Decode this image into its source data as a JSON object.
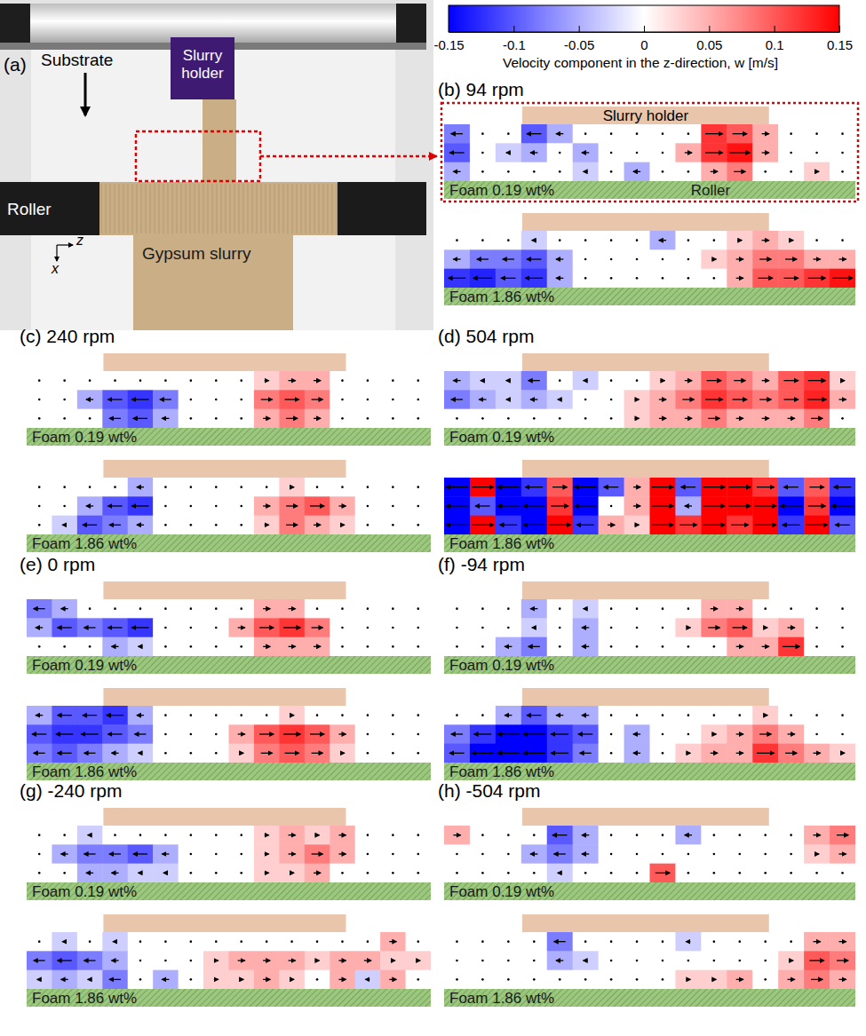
{
  "chart_data": {
    "type": "heatmap",
    "colorbar": {
      "title": "Velocity component in the z-direction, w [m/s]",
      "range": [
        -0.15,
        0.15
      ],
      "ticks": [
        -0.15,
        -0.1,
        -0.05,
        0,
        0.05,
        0.1,
        0.15
      ]
    },
    "panels": [
      {
        "label": "(b) 94 rpm",
        "holder_label": "Slurry holder",
        "roller_label": "Roller",
        "fields": [
          {
            "foam": "Foam 0.19 wt%",
            "w": [
              [
                -0.08,
                0,
                0,
                -0.1,
                -0.05,
                0,
                0,
                0,
                0,
                0,
                0.12,
                0.1,
                0.05,
                0,
                0,
                0
              ],
              [
                -0.1,
                0,
                -0.03,
                -0.05,
                0,
                -0.05,
                0,
                0,
                0,
                0.05,
                0.12,
                0.14,
                0.05,
                0,
                0,
                0
              ],
              [
                -0.05,
                0,
                0,
                0,
                0,
                -0.03,
                0,
                -0.05,
                0,
                0,
                0.05,
                0.08,
                0,
                0,
                0.03,
                0
              ]
            ]
          },
          {
            "foam": "Foam 1.86 wt%",
            "w": [
              [
                0,
                0,
                0,
                -0.03,
                0,
                0,
                0,
                0,
                -0.05,
                0,
                0,
                0.03,
                0.05,
                0.03,
                0,
                0
              ],
              [
                -0.05,
                -0.08,
                -0.08,
                -0.1,
                -0.05,
                0,
                0,
                0,
                0,
                0,
                0.03,
                0.05,
                0.08,
                0.08,
                0.05,
                0.05
              ],
              [
                -0.12,
                -0.13,
                -0.1,
                -0.12,
                -0.05,
                0,
                0,
                0,
                0,
                0,
                0,
                0.05,
                0.1,
                0.1,
                0.12,
                0.14
              ]
            ]
          }
        ]
      },
      {
        "label": "(c) 240 rpm",
        "fields": [
          {
            "foam": "Foam 0.19 wt%",
            "w": [
              [
                0,
                0,
                0,
                0,
                0,
                0,
                0,
                0,
                0,
                0.03,
                0.05,
                0.05,
                0,
                0,
                0,
                0
              ],
              [
                0,
                0,
                -0.05,
                -0.1,
                -0.12,
                -0.08,
                0,
                0,
                0,
                0.08,
                0.1,
                0.08,
                0,
                0,
                0,
                0
              ],
              [
                0,
                0,
                0,
                -0.08,
                -0.1,
                -0.05,
                0,
                0,
                0,
                0.05,
                0.08,
                0.05,
                0,
                0,
                0,
                0
              ]
            ]
          },
          {
            "foam": "Foam 1.86 wt%",
            "w": [
              [
                0,
                0,
                0,
                0,
                -0.05,
                0,
                0,
                0,
                0,
                0,
                0.03,
                0,
                0,
                0,
                0,
                0
              ],
              [
                0,
                0,
                -0.05,
                -0.1,
                -0.12,
                0,
                0,
                0,
                0,
                0.05,
                0.08,
                0.1,
                0.05,
                0,
                0,
                0
              ],
              [
                0,
                -0.03,
                -0.1,
                -0.08,
                -0.05,
                0,
                0,
                0,
                0,
                0.03,
                0.08,
                0.05,
                0.03,
                0,
                0,
                0
              ]
            ]
          }
        ]
      },
      {
        "label": "(d) 504 rpm",
        "fields": [
          {
            "foam": "Foam 0.19 wt%",
            "w": [
              [
                -0.05,
                -0.03,
                -0.03,
                -0.08,
                0,
                -0.03,
                0,
                0,
                0.03,
                0.05,
                0.1,
                0.08,
                0.05,
                0.1,
                0.12,
                0.03
              ],
              [
                -0.08,
                -0.05,
                -0.03,
                -0.05,
                -0.03,
                0,
                0,
                0.03,
                0.05,
                0.08,
                0.12,
                0.1,
                0.08,
                0.1,
                0.13,
                0.05
              ],
              [
                0,
                0,
                0,
                0,
                0,
                0,
                0,
                0.03,
                0.05,
                0.05,
                0.08,
                0.05,
                0.05,
                0.05,
                0.08,
                0
              ]
            ]
          },
          {
            "foam": "Foam 1.86 wt%",
            "w": [
              [
                -0.15,
                0.15,
                -0.15,
                -0.12,
                0.1,
                -0.15,
                -0.1,
                0.05,
                0.15,
                -0.1,
                0.15,
                0.15,
                0.12,
                -0.1,
                0.1,
                -0.12
              ],
              [
                -0.15,
                -0.1,
                -0.15,
                -0.15,
                0.12,
                -0.15,
                0,
                0.05,
                0.15,
                -0.05,
                0.15,
                0.15,
                0.15,
                -0.15,
                0.12,
                -0.15
              ],
              [
                -0.15,
                0.15,
                -0.12,
                -0.15,
                0.15,
                -0.12,
                0.05,
                0.03,
                0.15,
                0.12,
                0.15,
                0.12,
                0.15,
                -0.12,
                0.15,
                -0.1
              ]
            ]
          }
        ]
      },
      {
        "label": "(e) 0 rpm",
        "fields": [
          {
            "foam": "Foam 0.19 wt%",
            "w": [
              [
                -0.08,
                -0.05,
                0,
                0,
                0,
                0,
                0,
                0,
                0,
                0.05,
                0.05,
                0,
                0,
                0,
                0,
                0
              ],
              [
                -0.05,
                -0.1,
                -0.08,
                -0.1,
                -0.12,
                0,
                0,
                0,
                0.05,
                0.1,
                0.12,
                0.08,
                0,
                0,
                0,
                0
              ],
              [
                0,
                0,
                0,
                -0.05,
                -0.03,
                0,
                0,
                0,
                0,
                0.05,
                0.05,
                0.05,
                0,
                0,
                0,
                0
              ]
            ]
          },
          {
            "foam": "Foam 1.86 wt%",
            "w": [
              [
                -0.05,
                -0.1,
                -0.1,
                -0.12,
                -0.05,
                0,
                0,
                0,
                0,
                0,
                0.03,
                0,
                0,
                0,
                0,
                0
              ],
              [
                -0.1,
                -0.12,
                -0.12,
                -0.1,
                -0.08,
                0,
                0,
                0,
                0.05,
                0.1,
                0.12,
                0.1,
                0.05,
                0,
                0,
                0
              ],
              [
                -0.08,
                -0.1,
                -0.08,
                -0.05,
                -0.03,
                0,
                0,
                0,
                0.03,
                0.08,
                0.1,
                0.08,
                0.03,
                0,
                0,
                0
              ]
            ]
          }
        ]
      },
      {
        "label": "(f) -94 rpm",
        "fields": [
          {
            "foam": "Foam 0.19 wt%",
            "w": [
              [
                0,
                0,
                0,
                -0.05,
                0,
                -0.03,
                0,
                0,
                0,
                0,
                0.05,
                0.05,
                0,
                0,
                0,
                0
              ],
              [
                0,
                0,
                0,
                -0.03,
                0,
                -0.05,
                0,
                0,
                0,
                0.03,
                0.08,
                0.1,
                0.03,
                0.05,
                0,
                0
              ],
              [
                0,
                0,
                -0.05,
                -0.08,
                0,
                -0.05,
                0,
                0,
                0,
                0,
                0,
                0.05,
                0.05,
                0.12,
                0,
                0
              ]
            ]
          },
          {
            "foam": "Foam 1.86 wt%",
            "w": [
              [
                0,
                0,
                -0.05,
                -0.1,
                -0.05,
                -0.05,
                0,
                0,
                0,
                0,
                0,
                0,
                0.03,
                0,
                0,
                0
              ],
              [
                -0.08,
                -0.12,
                -0.15,
                -0.15,
                -0.12,
                -0.1,
                0,
                -0.05,
                0,
                0,
                0.03,
                0.05,
                0.08,
                0.05,
                0,
                0
              ],
              [
                -0.1,
                -0.15,
                -0.15,
                -0.15,
                -0.12,
                -0.08,
                0,
                -0.05,
                0,
                0.03,
                0.05,
                0.05,
                0.12,
                0.08,
                0.05,
                0.03
              ]
            ]
          }
        ]
      },
      {
        "label": "(g) -240 rpm",
        "fields": [
          {
            "foam": "Foam 0.19 wt%",
            "w": [
              [
                0,
                0,
                -0.03,
                0,
                0,
                0,
                0,
                0,
                0,
                0.03,
                0.05,
                0.03,
                0.05,
                0,
                0,
                0
              ],
              [
                0,
                -0.05,
                -0.08,
                -0.08,
                -0.1,
                -0.05,
                0,
                0,
                0,
                0.03,
                0.05,
                0.08,
                0.05,
                0,
                0,
                0
              ],
              [
                0,
                0,
                -0.05,
                -0.05,
                -0.03,
                -0.03,
                0,
                0,
                0,
                0.03,
                0.03,
                0.05,
                0,
                0,
                0,
                0
              ]
            ]
          },
          {
            "foam": "Foam 1.86 wt%",
            "w": [
              [
                0,
                -0.03,
                0,
                -0.03,
                0,
                0,
                0,
                0,
                0,
                0,
                0,
                0,
                0,
                0,
                0.05,
                0
              ],
              [
                -0.08,
                -0.1,
                -0.08,
                -0.05,
                0,
                0,
                0,
                0.03,
                0.05,
                0.05,
                0.05,
                0.03,
                0.05,
                0.05,
                0.03,
                0.03
              ],
              [
                -0.03,
                -0.05,
                -0.03,
                -0.08,
                0,
                -0.05,
                0,
                0.03,
                0.03,
                0.05,
                0.03,
                0,
                0.05,
                -0.03,
                0.05,
                0
              ]
            ]
          }
        ]
      },
      {
        "label": "(h) -504 rpm",
        "fields": [
          {
            "foam": "Foam 0.19 wt%",
            "w": [
              [
                0.05,
                0,
                0,
                0,
                -0.1,
                -0.05,
                0,
                0,
                0,
                -0.05,
                0,
                0,
                0,
                0,
                0.05,
                0.08
              ],
              [
                0,
                0,
                0,
                -0.05,
                -0.08,
                -0.05,
                0,
                0,
                0,
                0,
                0,
                0,
                0,
                0,
                0.03,
                0.05
              ],
              [
                0,
                0,
                0,
                0,
                -0.03,
                0,
                0,
                0,
                0.1,
                0,
                0,
                0,
                0,
                0,
                0,
                0
              ]
            ]
          },
          {
            "foam": "Foam 1.86 wt%",
            "w": [
              [
                0,
                0,
                0,
                0,
                -0.08,
                0,
                0,
                0,
                0,
                -0.03,
                0,
                0,
                0,
                0,
                0.05,
                0.05
              ],
              [
                0,
                0,
                0,
                0,
                -0.05,
                -0.03,
                0,
                0,
                0,
                0,
                0,
                0,
                0,
                0.03,
                0.1,
                0.08
              ],
              [
                0,
                0,
                0,
                0,
                0,
                0,
                0,
                0,
                0,
                0.03,
                0.03,
                0.05,
                0,
                0.05,
                0.08,
                0.05
              ]
            ]
          }
        ]
      }
    ]
  },
  "diagram": {
    "label": "(a)",
    "substrate": "Substrate",
    "slurry_holder": "Slurry holder",
    "roller": "Roller",
    "gypsum_slurry": "Gypsum slurry",
    "axis_z": "z",
    "axis_x": "x"
  }
}
